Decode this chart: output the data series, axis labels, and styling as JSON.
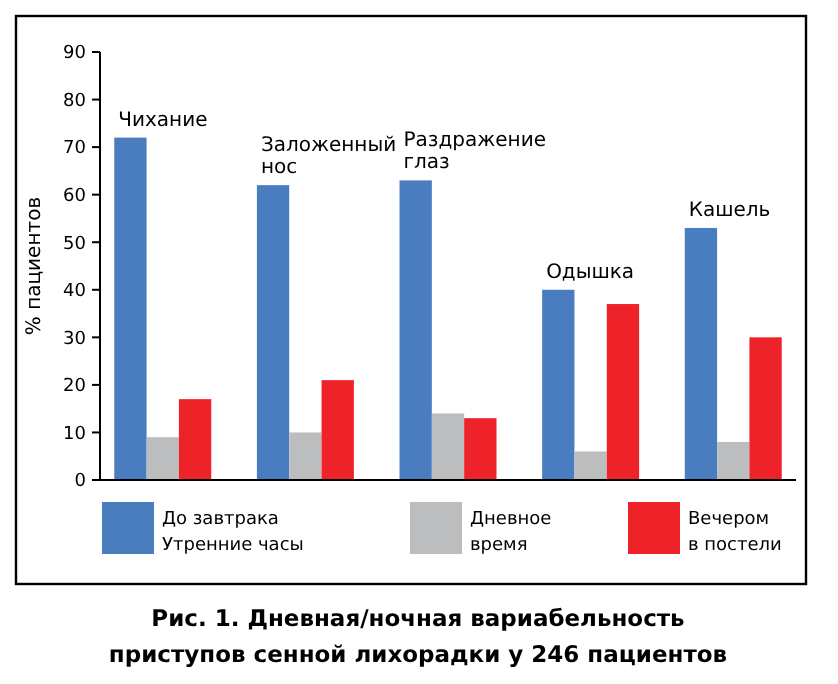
{
  "chart_data": {
    "type": "bar",
    "title": "Рис. 1. Дневная/ночная вариабельность\nприступов сенной лихорадки у 246 пациентов",
    "ylabel": "% пациентов",
    "categories": [
      "Чихание",
      "Заложенный\nнос",
      "Раздражение\nглаз",
      "Одышка",
      "Кашель"
    ],
    "series": [
      {
        "name": "До завтрака\nУтренние часы",
        "color": "#4a7dc0",
        "values": [
          72,
          62,
          63,
          40,
          53
        ]
      },
      {
        "name": "Дневное\nвремя",
        "color": "#bcbdbf",
        "values": [
          9,
          10,
          14,
          6,
          8
        ]
      },
      {
        "name": "Вечером\nв постели",
        "color": "#ee2229",
        "values": [
          17,
          21,
          13,
          37,
          30
        ]
      }
    ],
    "ylim": [
      0,
      90
    ],
    "yticks": [
      0,
      10,
      20,
      30,
      40,
      50,
      60,
      70,
      80,
      90
    ],
    "grid": false,
    "legend": "bottom"
  }
}
